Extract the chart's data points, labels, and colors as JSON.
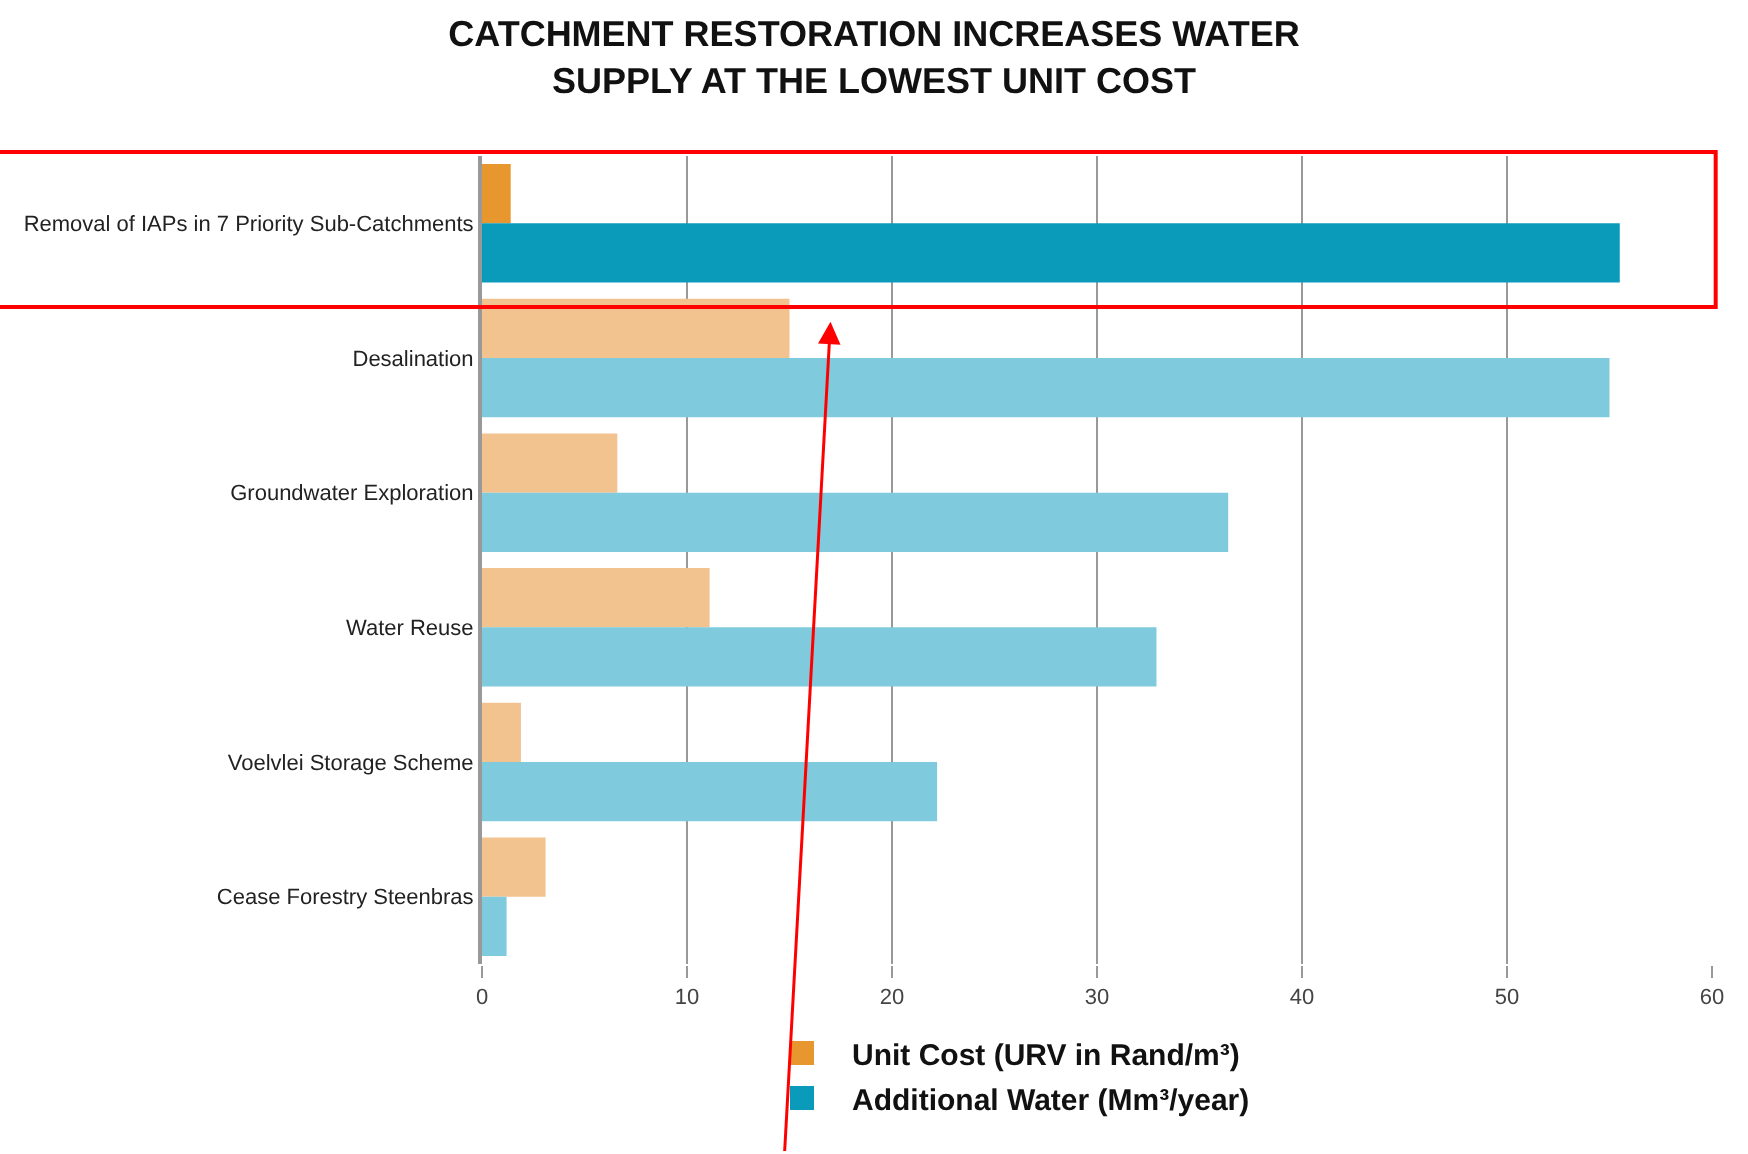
{
  "chart_data": {
    "type": "bar",
    "orientation": "horizontal",
    "title": "CATCHMENT RESTORATION INCREASES WATER\nSUPPLY AT THE LOWEST UNIT COST",
    "categories": [
      "Removal of IAPs in 7 Priority Sub-Catchments",
      "Desalination",
      "Groundwater Exploration",
      "Water Reuse",
      "Voelvlei Storage Scheme",
      "Cease Forestry Steenbras"
    ],
    "series": [
      {
        "name": "Unit Cost (URV in Rand/m³)",
        "colors": [
          "#e8962e",
          "#f3c38f",
          "#f3c38f",
          "#f3c38f",
          "#f3c38f",
          "#f3c38f"
        ],
        "values": [
          1.4,
          15,
          6.6,
          11.1,
          1.9,
          3.1
        ]
      },
      {
        "name": "Additional Water (Mm³/year)",
        "colors": [
          "#0a9bbb",
          "#7fcbdd",
          "#7fcbdd",
          "#7fcbdd",
          "#7fcbdd",
          "#7fcbdd"
        ],
        "values": [
          55.5,
          55,
          36.4,
          32.9,
          22.2,
          1.2
        ]
      }
    ],
    "xlim": [
      0,
      60
    ],
    "xticks": [
      0,
      10,
      20,
      30,
      40,
      50,
      60
    ],
    "grid": "x",
    "legend": "bottom"
  }
}
